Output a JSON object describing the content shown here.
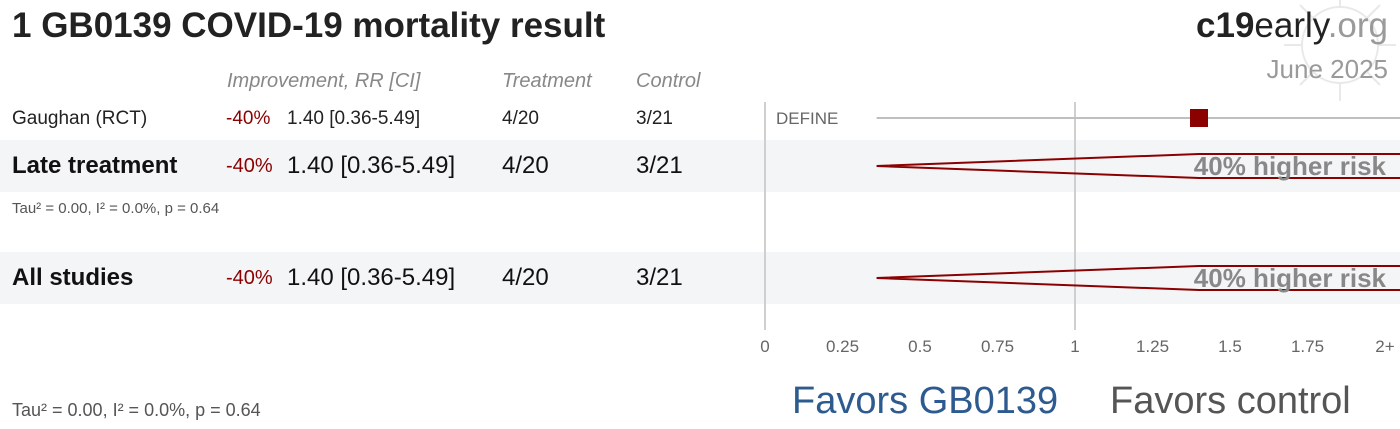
{
  "title": "1 GB0139 COVID-19 mortality result",
  "brand": {
    "part1": "c19",
    "part2": "early",
    "part3": ".org"
  },
  "date": "June 2025",
  "columns": {
    "improvement": "Improvement, RR [CI]",
    "treatment": "Treatment",
    "control": "Control"
  },
  "rows": [
    {
      "name": "Gaughan (RCT)",
      "improvement": "-40%",
      "rr": "1.40 [0.36-5.49]",
      "treatment": "4/20",
      "control": "3/21",
      "trial": "DEFINE"
    },
    {
      "name": "Late treatment",
      "improvement": "-40%",
      "rr": "1.40 [0.36-5.49]",
      "treatment": "4/20",
      "control": "3/21",
      "stat": "Tau² = 0.00, I² = 0.0%, p = 0.64",
      "label": "40% higher risk"
    },
    {
      "name": "All studies",
      "improvement": "-40%",
      "rr": "1.40 [0.36-5.49]",
      "treatment": "4/20",
      "control": "3/21",
      "stat": "Tau² = 0.00, I² = 0.0%, p = 0.64",
      "label": "40% higher risk"
    }
  ],
  "favors": {
    "left": "Favors GB0139",
    "right": "Favors control"
  },
  "colors": {
    "accent": "#8b0000",
    "favors_left": "#2e5b8f",
    "band": "#f4f5f7"
  },
  "chart_data": {
    "type": "forest",
    "x_ticks": [
      "0",
      "0.25",
      "0.5",
      "0.75",
      "1",
      "1.25",
      "1.5",
      "1.75",
      "2+"
    ],
    "xlim": [
      0,
      2
    ],
    "null_value": 1,
    "points": [
      {
        "study": "Gaughan (RCT)",
        "rr": 1.4,
        "lower": 0.36,
        "upper": 5.49
      }
    ],
    "pooled": [
      {
        "group": "Late treatment",
        "rr": 1.4,
        "lower": 0.36,
        "upper": 5.49
      },
      {
        "group": "All studies",
        "rr": 1.4,
        "lower": 0.36,
        "upper": 5.49
      }
    ]
  }
}
